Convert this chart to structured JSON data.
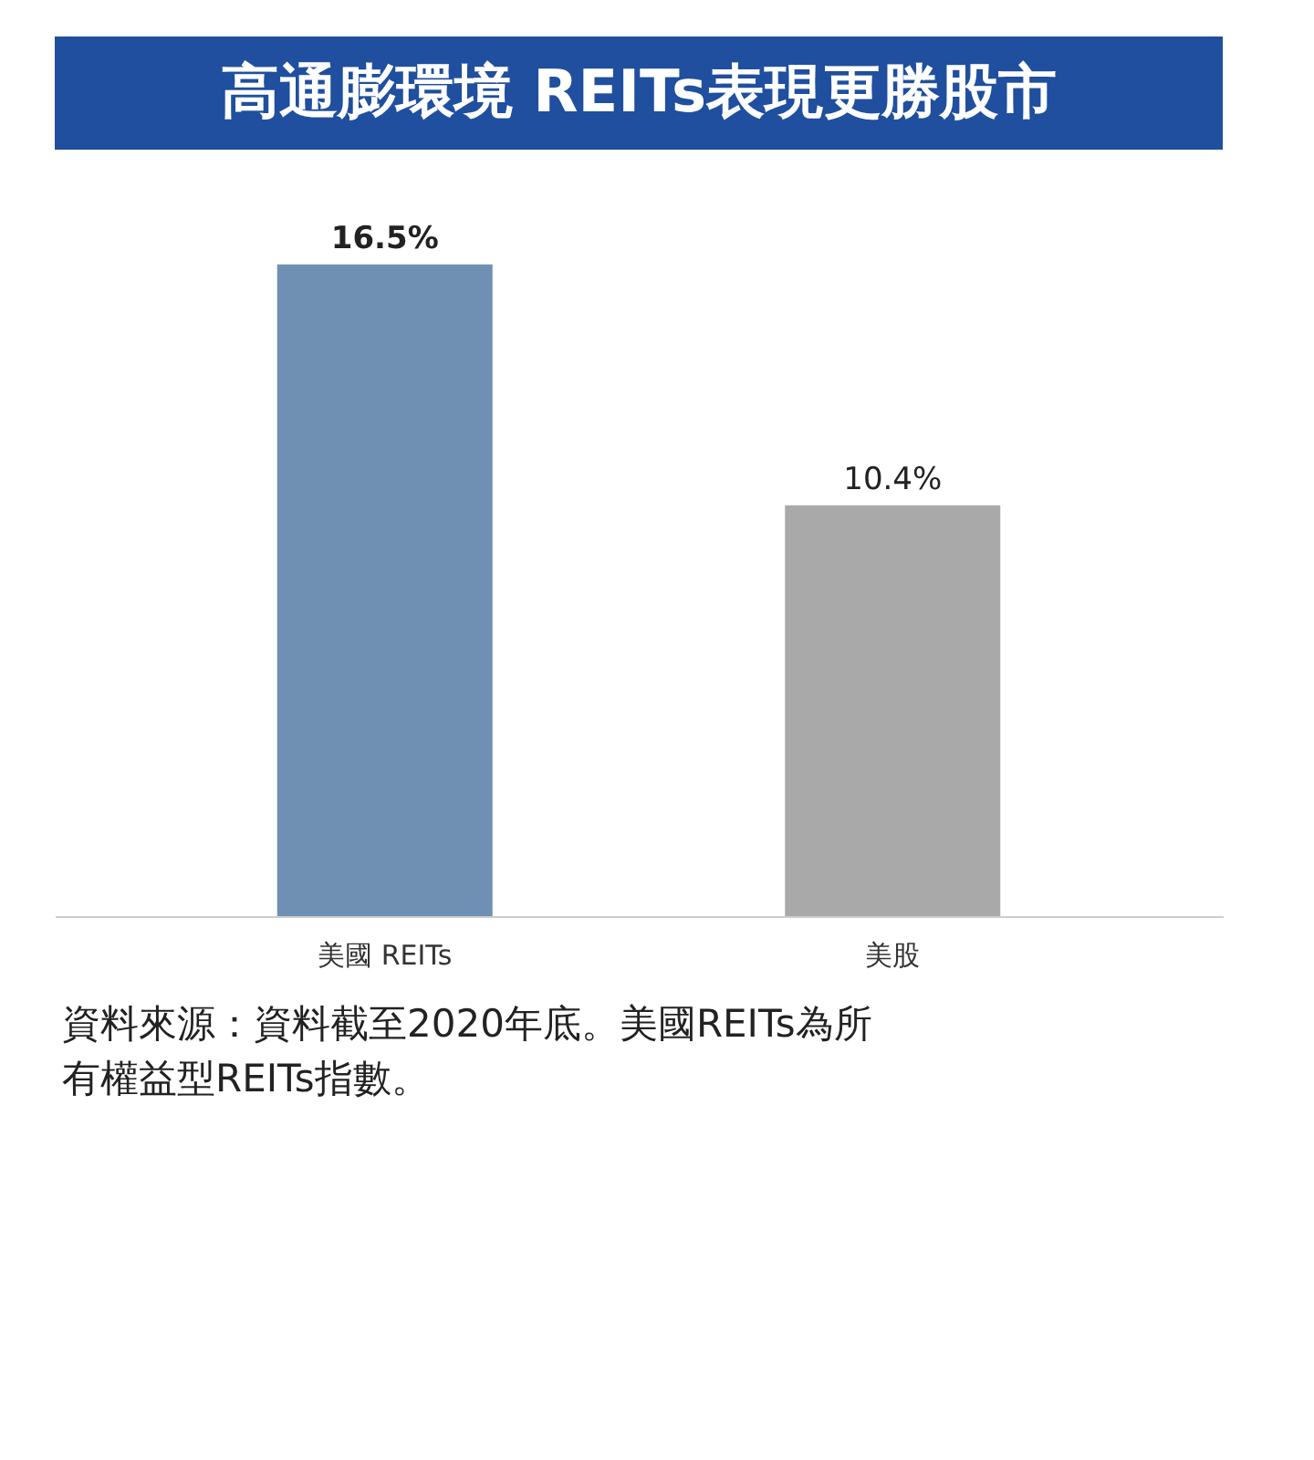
{
  "chart_data": {
    "type": "bar",
    "title": "高通膨環境  REITs表現更勝股市",
    "categories": [
      "美國 REITs",
      "美股"
    ],
    "values": [
      16.5,
      10.4
    ],
    "colors": [
      "#7090b3",
      "#a9a9a9"
    ],
    "value_labels": [
      "16.5%",
      "10.4%"
    ],
    "annotations": [
      "資料來源：資料截至2020年底。美國REITs為所有權益型REITs指數。"
    ],
    "grid": false
  }
}
